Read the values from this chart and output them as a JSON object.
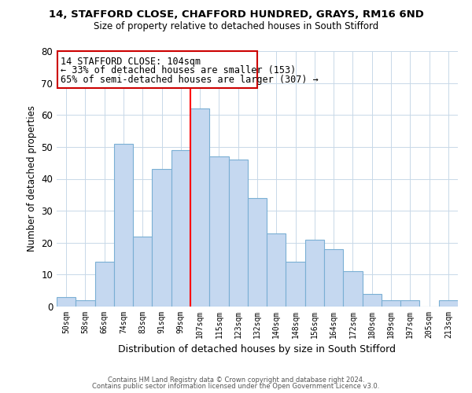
{
  "title1": "14, STAFFORD CLOSE, CHAFFORD HUNDRED, GRAYS, RM16 6ND",
  "title2": "Size of property relative to detached houses in South Stifford",
  "xlabel": "Distribution of detached houses by size in South Stifford",
  "ylabel": "Number of detached properties",
  "bin_labels": [
    "50sqm",
    "58sqm",
    "66sqm",
    "74sqm",
    "83sqm",
    "91sqm",
    "99sqm",
    "107sqm",
    "115sqm",
    "123sqm",
    "132sqm",
    "140sqm",
    "148sqm",
    "156sqm",
    "164sqm",
    "172sqm",
    "180sqm",
    "189sqm",
    "197sqm",
    "205sqm",
    "213sqm"
  ],
  "bar_heights": [
    3,
    2,
    14,
    51,
    22,
    43,
    49,
    62,
    47,
    46,
    34,
    23,
    14,
    21,
    18,
    11,
    4,
    2,
    2,
    0,
    2
  ],
  "bar_color": "#c5d8f0",
  "bar_edge_color": "#7aafd4",
  "vline_x": 7,
  "vline_color": "red",
  "annotation_title": "14 STAFFORD CLOSE: 104sqm",
  "annotation_line1": "← 33% of detached houses are smaller (153)",
  "annotation_line2": "65% of semi-detached houses are larger (307) →",
  "annotation_box_color": "#ffffff",
  "annotation_box_edge": "#cc0000",
  "ylim": [
    0,
    80
  ],
  "yticks": [
    0,
    10,
    20,
    30,
    40,
    50,
    60,
    70,
    80
  ],
  "footer1": "Contains HM Land Registry data © Crown copyright and database right 2024.",
  "footer2": "Contains public sector information licensed under the Open Government Licence v3.0."
}
